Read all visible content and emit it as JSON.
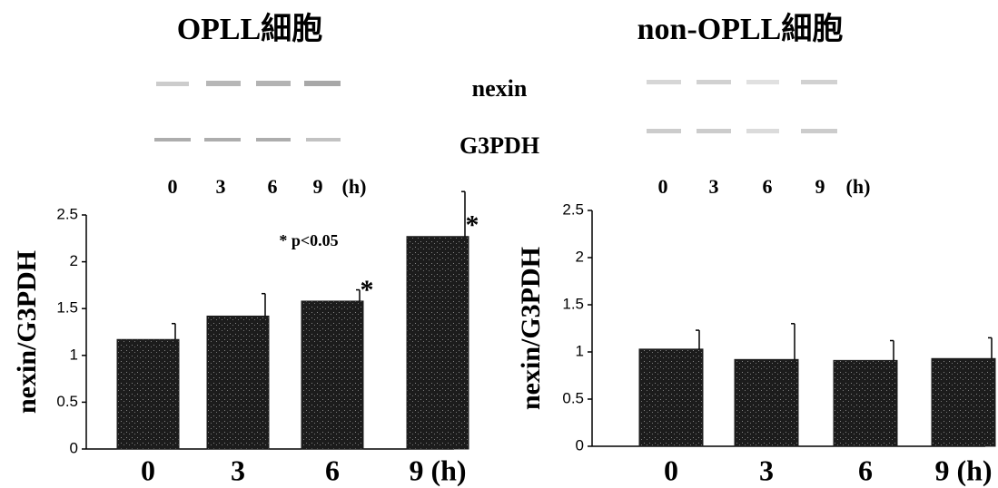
{
  "chart_data": [
    {
      "type": "bar",
      "title": "OPLL細胞",
      "y_label": "nexin/G3PDH",
      "blot_rows": [
        "nexin",
        "G3PDH"
      ],
      "blot_lanes": [
        "0",
        "3",
        "6",
        "9",
        "(h)"
      ],
      "categories": [
        "0",
        "3",
        "6",
        "9 (h)"
      ],
      "values": [
        1.17,
        1.42,
        1.58,
        2.27
      ],
      "errors": [
        0.17,
        0.24,
        0.12,
        0.48
      ],
      "markers": [
        null,
        null,
        "*",
        "*"
      ],
      "annotation": "* p<0.05",
      "color": "#1c1c1c",
      "ylim": [
        0,
        2.5
      ],
      "yticks": [
        0,
        0.5,
        1,
        1.5,
        2,
        2.5
      ]
    },
    {
      "type": "bar",
      "title": "non-OPLL細胞",
      "y_label": "nexin/G3PDH",
      "blot_lanes": [
        "0",
        "3",
        "6",
        "9",
        "(h)"
      ],
      "categories": [
        "0",
        "3",
        "6",
        "9 (h)"
      ],
      "values": [
        1.03,
        0.92,
        0.91,
        0.93
      ],
      "errors": [
        0.2,
        0.38,
        0.21,
        0.22
      ],
      "color": "#1c1c1c",
      "ylim": [
        0,
        2.5
      ],
      "yticks": [
        0,
        0.5,
        1,
        1.5,
        2,
        2.5
      ]
    }
  ]
}
